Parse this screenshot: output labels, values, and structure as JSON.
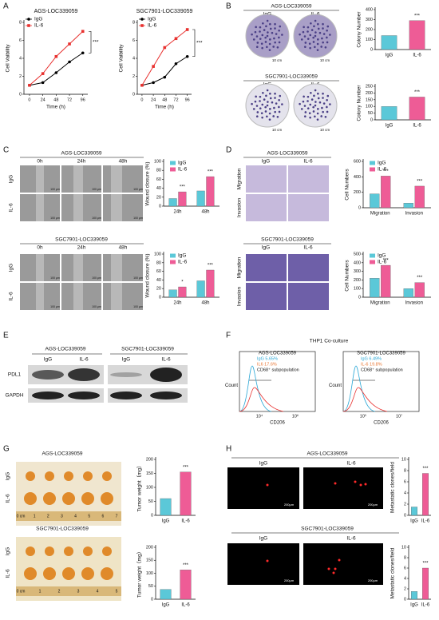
{
  "chart_data": [
    {
      "type": "line",
      "title": "AGS-LOC339059",
      "x": [
        0,
        24,
        48,
        72,
        96
      ],
      "xlim": [
        -10,
        105
      ],
      "xticks": [
        0,
        24,
        48,
        72,
        96
      ],
      "ylim": [
        0,
        8
      ],
      "yticks": [
        0,
        2,
        4,
        6,
        8
      ],
      "xlabel": "Time (h)",
      "ylabel": "Cell Vaibility",
      "annotation": "***",
      "series": [
        {
          "name": "IgG",
          "color": "#000000",
          "values": [
            1,
            1.3,
            2.4,
            3.6,
            4.6
          ]
        },
        {
          "name": "IL-6",
          "color": "#e8312f",
          "values": [
            1,
            2.3,
            4.2,
            5.6,
            7.0
          ]
        }
      ]
    },
    {
      "type": "line",
      "title": "SGC7901-LOC339059",
      "x": [
        0,
        24,
        48,
        72,
        96
      ],
      "xlim": [
        -10,
        105
      ],
      "xticks": [
        0,
        24,
        48,
        72,
        96
      ],
      "ylim": [
        0,
        8
      ],
      "yticks": [
        0,
        2,
        4,
        6,
        8
      ],
      "xlabel": "Time (h)",
      "ylabel": "Cell Vaibility",
      "annotation": "***",
      "series": [
        {
          "name": "IgG",
          "color": "#000000",
          "values": [
            1,
            1.3,
            1.9,
            3.4,
            4.2
          ]
        },
        {
          "name": "IL-6",
          "color": "#e8312f",
          "values": [
            1,
            3.1,
            5.2,
            6.2,
            7.2
          ]
        }
      ]
    },
    {
      "type": "bar",
      "categories": [
        "IgG",
        "IL-6"
      ],
      "values": [
        140,
        290
      ],
      "colors": [
        "#5bc8d8",
        "#ee5c96"
      ],
      "ylim": [
        0,
        400
      ],
      "yticks": [
        0,
        100,
        200,
        300,
        400
      ],
      "ylabel": "Colony Number",
      "annotation": "***"
    },
    {
      "type": "bar",
      "categories": [
        "IgG",
        "IL-6"
      ],
      "values": [
        100,
        170
      ],
      "colors": [
        "#5bc8d8",
        "#ee5c96"
      ],
      "ylim": [
        0,
        250
      ],
      "yticks": [
        0,
        50,
        100,
        150,
        200,
        250
      ],
      "ylabel": "Colony Number",
      "annotation": "***"
    },
    {
      "type": "bar",
      "categories": [
        "24h",
        "48h"
      ],
      "ylim": [
        0,
        100
      ],
      "yticks": [
        0,
        20,
        40,
        60,
        80,
        100
      ],
      "ylabel": "Wound closure (%)",
      "annotations": [
        "***",
        "***"
      ],
      "series": [
        {
          "name": "IgG",
          "color": "#5bc8d8",
          "values": [
            17,
            34
          ]
        },
        {
          "name": "IL-6",
          "color": "#ee5c96",
          "values": [
            32,
            66
          ]
        }
      ]
    },
    {
      "type": "bar",
      "categories": [
        "24h",
        "48h"
      ],
      "ylim": [
        0,
        100
      ],
      "yticks": [
        0,
        20,
        40,
        60,
        80,
        100
      ],
      "ylabel": "Wound closure (%)",
      "annotations": [
        "*",
        "***"
      ],
      "series": [
        {
          "name": "IgG",
          "color": "#5bc8d8",
          "values": [
            17,
            38
          ]
        },
        {
          "name": "IL-6",
          "color": "#ee5c96",
          "values": [
            24,
            63
          ]
        }
      ]
    },
    {
      "type": "bar",
      "categories": [
        "Migration",
        "Invasion"
      ],
      "ylim": [
        0,
        600
      ],
      "yticks": [
        0,
        200,
        400,
        600
      ],
      "ylabel": "Cell Numbers",
      "annotations": [
        "***",
        "***"
      ],
      "series": [
        {
          "name": "IgG",
          "color": "#5bc8d8",
          "values": [
            180,
            60
          ]
        },
        {
          "name": "IL-6",
          "color": "#ee5c96",
          "values": [
            410,
            280
          ]
        }
      ]
    },
    {
      "type": "bar",
      "categories": [
        "Migration",
        "Invasion"
      ],
      "ylim": [
        0,
        500
      ],
      "yticks": [
        0,
        100,
        200,
        300,
        400,
        500
      ],
      "ylabel": "Cell Numbers",
      "annotations": [
        "***",
        "***"
      ],
      "series": [
        {
          "name": "IgG",
          "color": "#5bc8d8",
          "values": [
            220,
            100
          ]
        },
        {
          "name": "IL-6",
          "color": "#ee5c96",
          "values": [
            370,
            170
          ]
        }
      ]
    },
    {
      "type": "bar",
      "categories": [
        "IgG",
        "IL-6"
      ],
      "values": [
        60,
        155
      ],
      "colors": [
        "#5bc8d8",
        "#ee5c96"
      ],
      "ylim": [
        0,
        200
      ],
      "yticks": [
        0,
        50,
        100,
        150,
        200
      ],
      "ylabel": "Tumor weight（mg）",
      "annotation": "***"
    },
    {
      "type": "bar",
      "categories": [
        "IgG",
        "IL-6"
      ],
      "values": [
        38,
        113
      ],
      "colors": [
        "#5bc8d8",
        "#ee5c96"
      ],
      "ylim": [
        0,
        200
      ],
      "yticks": [
        0,
        50,
        100,
        150,
        200
      ],
      "ylabel": "Tumor weight（mg）",
      "annotation": "***"
    },
    {
      "type": "bar",
      "categories": [
        "IgG",
        "IL-6"
      ],
      "values": [
        1.5,
        7.5
      ],
      "colors": [
        "#5bc8d8",
        "#ee5c96"
      ],
      "ylim": [
        0,
        10
      ],
      "yticks": [
        0,
        2,
        4,
        6,
        8,
        10
      ],
      "ylabel": "Metastatic clones/field",
      "annotation": "***"
    },
    {
      "type": "bar",
      "categories": [
        "IgG",
        "IL-6"
      ],
      "values": [
        1.5,
        6
      ],
      "colors": [
        "#5bc8d8",
        "#ee5c96"
      ],
      "ylim": [
        0,
        10
      ],
      "yticks": [
        0,
        2,
        4,
        6,
        8,
        10
      ],
      "ylabel": "Metastatic clones/field",
      "annotation": "***"
    }
  ],
  "panels": {
    "labels": [
      "A",
      "B",
      "C",
      "D",
      "E",
      "F",
      "G",
      "H"
    ],
    "B": {
      "titles": [
        "AGS-LOC339059",
        "SGC7901-LOC339059"
      ],
      "columns": [
        "IgG",
        "IL-6"
      ],
      "scale": "10 cm"
    },
    "C": {
      "titles": [
        "AGS-LOC339059",
        "SGC7901-LOC339059"
      ],
      "times": [
        "0h",
        "24h",
        "48h"
      ],
      "rows": [
        "IgG",
        "IL-6"
      ],
      "scale": "100 μm"
    },
    "D": {
      "titles": [
        "AGS-LOC339059",
        "SGC7901-LOC339059"
      ],
      "columns": [
        "IgG",
        "IL-6"
      ],
      "rows": [
        "Migration",
        "Invasion"
      ]
    },
    "E": {
      "titles": [
        "AGS-LOC339059",
        "SGC7901-LOC339059"
      ],
      "columns": [
        "IgG",
        "IL-6"
      ],
      "proteins": [
        "PDL1",
        "GAPDH"
      ]
    },
    "F": {
      "title": "THP1 Co-culture",
      "ylabel": "Count",
      "xlabel": "CD206",
      "plots": [
        {
          "title": "AGS-LOC339059",
          "legend": [
            "IgG 5.65%",
            "IL6  17.6%"
          ],
          "note": "CD68⁺ subpopulation",
          "ticks": [
            "10⁴",
            "10⁶"
          ]
        },
        {
          "title": "SGC7901-LOC339059",
          "legend": [
            "IgG 6.49%",
            "IL-6  19.8%"
          ],
          "note": "CD68⁺ subpopulation",
          "ticks": [
            "10⁵",
            "10⁷"
          ]
        }
      ]
    },
    "G": {
      "titles": [
        "AGS-LOC339059",
        "SGC7901-LOC339059"
      ],
      "rows": [
        "IgG",
        "IL-6"
      ],
      "rulers": [
        [
          "0 cm",
          "1",
          "2",
          "3",
          "4",
          "5",
          "6",
          "7"
        ],
        [
          "0 cm",
          "1",
          "2",
          "3",
          "4",
          "5"
        ]
      ]
    },
    "H": {
      "titles": [
        "AGS-LOC339059",
        "SGC7901-LOC339059"
      ],
      "columns": [
        "IgG",
        "IL-6"
      ],
      "scale": "200μm"
    }
  }
}
